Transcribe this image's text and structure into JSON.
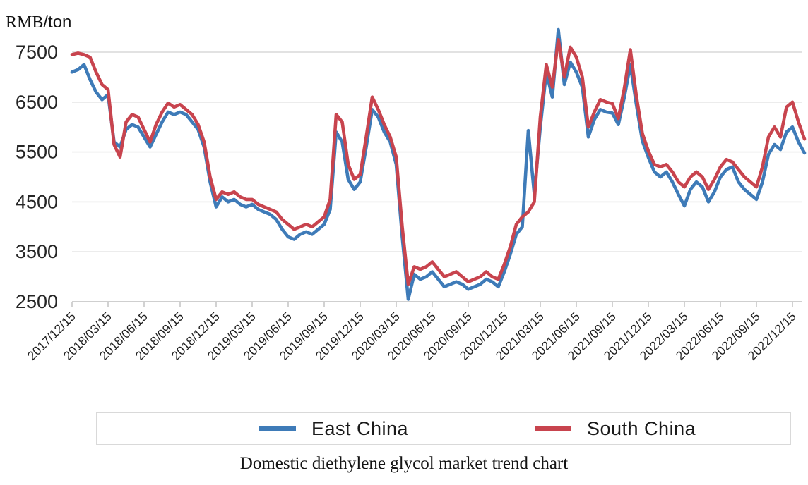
{
  "title": "Domestic diethylene glycol market trend chart",
  "y_axis": {
    "unit_prefix": "RMB",
    "unit_suffix": "/ton"
  },
  "chart_data": {
    "type": "line",
    "title": "Domestic diethylene glycol market trend chart",
    "ylabel": "RMB/ton",
    "ylim": [
      2500,
      7500
    ],
    "grid": true,
    "legend_position": "bottom",
    "y_ticks": [
      7500,
      6500,
      5500,
      4500,
      3500,
      2500
    ],
    "x_tick_labels": [
      "2017/12/15",
      "2018/03/15",
      "2018/06/15",
      "2018/09/15",
      "2018/12/15",
      "2019/03/15",
      "2019/06/15",
      "2019/09/15",
      "2019/12/15",
      "2020/03/15",
      "2020/06/15",
      "2020/09/15",
      "2020/12/15",
      "2021/03/15",
      "2021/06/15",
      "2021/09/15",
      "2021/12/15",
      "2022/03/15",
      "2022/06/15",
      "2022/09/15",
      "2022/12/15"
    ],
    "points_per_quarter": 6,
    "colors": {
      "grid": "#D9D9D9",
      "axis": "#BFBFBF",
      "tick_text": "#262626"
    },
    "series": [
      {
        "name": "East China",
        "color": "#3E7BB8",
        "values": [
          7100,
          7150,
          7250,
          6950,
          6700,
          6550,
          6650,
          5700,
          5600,
          5950,
          6050,
          6000,
          5800,
          5600,
          5850,
          6100,
          6300,
          6250,
          6300,
          6250,
          6100,
          5950,
          5600,
          4900,
          4400,
          4600,
          4500,
          4550,
          4450,
          4400,
          4450,
          4350,
          4300,
          4250,
          4150,
          3950,
          3800,
          3750,
          3850,
          3900,
          3850,
          3950,
          4050,
          4350,
          5900,
          5700,
          4950,
          4750,
          4900,
          5600,
          6350,
          6200,
          5900,
          5700,
          5250,
          3800,
          2550,
          3050,
          2950,
          3000,
          3100,
          2950,
          2800,
          2850,
          2900,
          2850,
          2750,
          2800,
          2850,
          2950,
          2900,
          2800,
          3100,
          3450,
          3850,
          4000,
          5930,
          4650,
          6000,
          7100,
          6600,
          7950,
          6850,
          7300,
          7100,
          6800,
          5800,
          6150,
          6350,
          6300,
          6280,
          6050,
          6600,
          7250,
          6450,
          5720,
          5390,
          5100,
          5000,
          5100,
          4900,
          4650,
          4420,
          4750,
          4900,
          4800,
          4500,
          4700,
          5000,
          5150,
          5200,
          4900,
          4750,
          4650,
          4550,
          4900,
          5450,
          5650,
          5550,
          5900,
          6000,
          5700,
          5480
        ]
      },
      {
        "name": "South China",
        "color": "#C8444E",
        "values": [
          7450,
          7480,
          7450,
          7400,
          7100,
          6850,
          6750,
          5650,
          5400,
          6100,
          6250,
          6200,
          5950,
          5700,
          6050,
          6300,
          6480,
          6400,
          6450,
          6350,
          6250,
          6050,
          5700,
          5000,
          4550,
          4700,
          4650,
          4700,
          4600,
          4550,
          4550,
          4450,
          4400,
          4350,
          4300,
          4150,
          4050,
          3950,
          4000,
          4050,
          4000,
          4100,
          4200,
          4550,
          6250,
          6100,
          5250,
          4950,
          5050,
          5800,
          6600,
          6350,
          6050,
          5800,
          5400,
          4000,
          2850,
          3200,
          3150,
          3200,
          3300,
          3150,
          3000,
          3050,
          3100,
          3000,
          2900,
          2950,
          3000,
          3100,
          3000,
          2950,
          3250,
          3600,
          4050,
          4200,
          4300,
          4500,
          6200,
          7250,
          6800,
          7750,
          7000,
          7600,
          7400,
          7000,
          6000,
          6300,
          6550,
          6500,
          6470,
          6170,
          6780,
          7550,
          6620,
          5870,
          5520,
          5250,
          5200,
          5250,
          5100,
          4900,
          4800,
          5000,
          5100,
          5000,
          4750,
          4950,
          5200,
          5350,
          5300,
          5150,
          5000,
          4900,
          4800,
          5200,
          5800,
          6000,
          5800,
          6400,
          6500,
          6100,
          5760
        ]
      }
    ]
  },
  "legend": {
    "items": [
      {
        "label": "East China",
        "color": "#3E7BB8"
      },
      {
        "label": "South China",
        "color": "#C8444E"
      }
    ]
  }
}
